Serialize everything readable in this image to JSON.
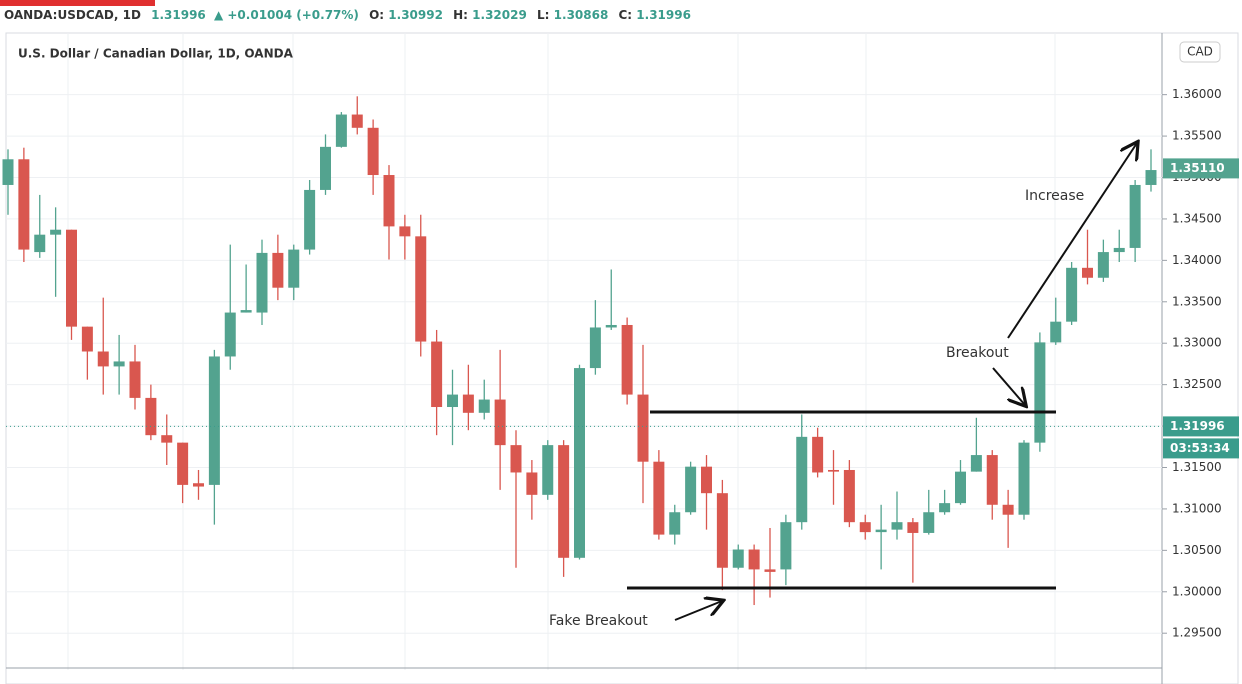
{
  "chart_data": {
    "type": "candlestick",
    "header": {
      "symbol": "OANDA:USDCAD, 1D",
      "last": "1.31996",
      "change": "▲ +0.01004 (+0.77%)",
      "open_label": "O:",
      "open": "1.30992",
      "high_label": "H:",
      "high": "1.32029",
      "low_label": "L:",
      "low": "1.30868",
      "close_label": "C:",
      "close": "1.31996"
    },
    "title": "U.S. Dollar / Canadian Dollar, 1D, OANDA",
    "currency": "CAD",
    "up_color": "#53a38f",
    "down_color": "#d9574f",
    "open": [
      1.3491,
      1.3522,
      1.341,
      1.3431,
      1.3437,
      1.332,
      1.329,
      1.3272,
      1.3278,
      1.3234,
      1.3189,
      1.318,
      1.3131,
      1.3129,
      1.3284,
      1.3337,
      1.3337,
      1.3409,
      1.3367,
      1.3413,
      1.3485,
      1.3537,
      1.3576,
      1.356,
      1.3503,
      1.3441,
      1.3429,
      1.3302,
      1.3223,
      1.3238,
      1.3216,
      1.3232,
      1.3177,
      1.3144,
      1.3117,
      1.3177,
      1.3041,
      1.327,
      1.3319,
      1.3322,
      1.3238,
      1.3157,
      1.3069,
      1.3096,
      1.3151,
      1.3119,
      1.3029,
      1.3051,
      1.3027,
      1.3027,
      1.3084,
      1.3187,
      1.3147,
      1.3147,
      1.3084,
      1.3072,
      1.3075,
      1.3084,
      1.3071,
      1.3096,
      1.3107,
      1.3145,
      1.3165,
      1.3105,
      1.3093,
      1.318,
      1.3301,
      1.3326,
      1.3391,
      1.3379,
      1.341,
      1.3415,
      1.3491
    ],
    "high": [
      1.3534,
      1.3536,
      1.3479,
      1.3464,
      1.3437,
      1.332,
      1.3355,
      1.331,
      1.3298,
      1.325,
      1.3214,
      1.318,
      1.3147,
      1.3292,
      1.3419,
      1.3395,
      1.3425,
      1.3431,
      1.3419,
      1.3497,
      1.3552,
      1.3579,
      1.3598,
      1.357,
      1.3515,
      1.3455,
      1.3455,
      1.3316,
      1.3268,
      1.3274,
      1.3256,
      1.3292,
      1.3195,
      1.3159,
      1.3183,
      1.3183,
      1.3274,
      1.3352,
      1.3389,
      1.3331,
      1.3298,
      1.3171,
      1.3105,
      1.3157,
      1.3165,
      1.3135,
      1.3057,
      1.3057,
      1.3077,
      1.3093,
      1.3214,
      1.3198,
      1.3171,
      1.3159,
      1.3093,
      1.3105,
      1.3121,
      1.3089,
      1.3123,
      1.3123,
      1.3159,
      1.321,
      1.3171,
      1.3123,
      1.3183,
      1.3313,
      1.3355,
      1.3398,
      1.3437,
      1.3425,
      1.3437,
      1.3497,
      1.3534
    ],
    "low": [
      1.3455,
      1.3398,
      1.3403,
      1.3356,
      1.3304,
      1.3256,
      1.3238,
      1.3238,
      1.322,
      1.3183,
      1.3153,
      1.3107,
      1.3111,
      1.3081,
      1.3268,
      1.3337,
      1.3322,
      1.3352,
      1.3352,
      1.3407,
      1.3479,
      1.3536,
      1.3552,
      1.3479,
      1.3401,
      1.3401,
      1.3284,
      1.3189,
      1.3177,
      1.3195,
      1.3208,
      1.3123,
      1.3029,
      1.3087,
      1.3111,
      1.3018,
      1.3039,
      1.3262,
      1.3316,
      1.3226,
      1.3107,
      1.3063,
      1.3057,
      1.3093,
      1.3075,
      1.3002,
      1.3027,
      1.2984,
      1.2993,
      1.3008,
      1.3075,
      1.3138,
      1.3105,
      1.3078,
      1.3063,
      1.3027,
      1.3063,
      1.3011,
      1.3069,
      1.3093,
      1.3105,
      1.3145,
      1.3087,
      1.3053,
      1.3087,
      1.3169,
      1.3298,
      1.3322,
      1.3371,
      1.3374,
      1.3398,
      1.3398,
      1.3483
    ],
    "close": [
      1.3522,
      1.3413,
      1.3431,
      1.3437,
      1.332,
      1.329,
      1.3272,
      1.3278,
      1.3234,
      1.3189,
      1.318,
      1.3129,
      1.3127,
      1.3284,
      1.3337,
      1.334,
      1.3409,
      1.3367,
      1.3413,
      1.3485,
      1.3537,
      1.3576,
      1.356,
      1.3503,
      1.3441,
      1.3429,
      1.3302,
      1.3223,
      1.3238,
      1.3216,
      1.3232,
      1.3177,
      1.3144,
      1.3117,
      1.3177,
      1.3041,
      1.327,
      1.3319,
      1.3322,
      1.3238,
      1.3157,
      1.3069,
      1.3096,
      1.3151,
      1.3119,
      1.3029,
      1.3051,
      1.3027,
      1.3024,
      1.3084,
      1.3187,
      1.3144,
      1.3145,
      1.3084,
      1.3072,
      1.3075,
      1.3084,
      1.3071,
      1.3096,
      1.3107,
      1.3145,
      1.3165,
      1.3105,
      1.3093,
      1.318,
      1.3301,
      1.3326,
      1.3391,
      1.3379,
      1.341,
      1.3415,
      1.3491,
      1.3509
    ],
    "ylim": [
      1.2908,
      1.3672
    ],
    "yticks": [
      {
        "value": 1.295,
        "label": "1.29500"
      },
      {
        "value": 1.3,
        "label": "1.30000"
      },
      {
        "value": 1.305,
        "label": "1.30500"
      },
      {
        "value": 1.31,
        "label": "1.31000"
      },
      {
        "value": 1.315,
        "label": "1.31500"
      },
      {
        "value": 1.32,
        "label": "1.32000"
      },
      {
        "value": 1.325,
        "label": "1.32500"
      },
      {
        "value": 1.33,
        "label": "1.33000"
      },
      {
        "value": 1.335,
        "label": "1.33500"
      },
      {
        "value": 1.34,
        "label": "1.34000"
      },
      {
        "value": 1.345,
        "label": "1.34500"
      },
      {
        "value": 1.35,
        "label": "1.35000"
      },
      {
        "value": 1.355,
        "label": "1.35500"
      },
      {
        "value": 1.36,
        "label": "1.36000"
      }
    ],
    "grid": true,
    "price_tags": [
      {
        "value": 1.3511,
        "label": "1.35110",
        "color": "#53a38f"
      },
      {
        "value": 1.31996,
        "label": "1.31996",
        "color": "#3a9c8c"
      }
    ],
    "countdown": "03:53:34",
    "annotations": {
      "increase": "Increase",
      "breakout": "Breakout",
      "fake_breakout": "Fake Breakout"
    }
  }
}
